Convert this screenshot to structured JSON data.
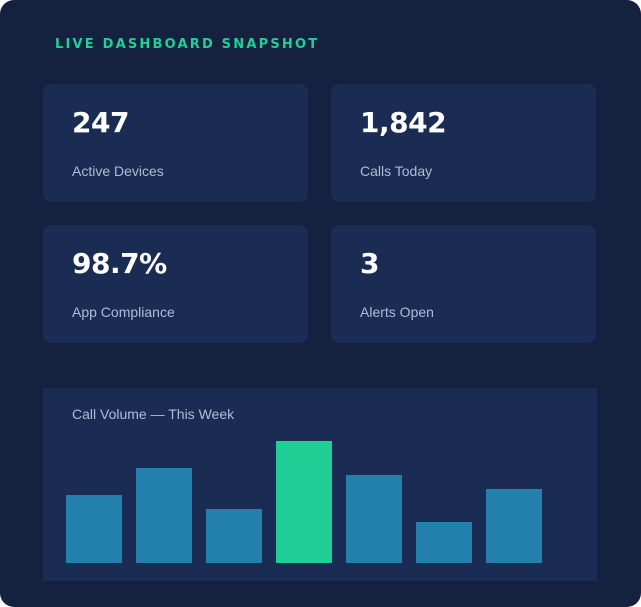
{
  "header": {
    "title": "LIVE DASHBOARD SNAPSHOT"
  },
  "stats": [
    {
      "value": "247",
      "label": "Active Devices"
    },
    {
      "value": "1,842",
      "label": "Calls Today"
    },
    {
      "value": "98.7%",
      "label": "App Compliance"
    },
    {
      "value": "3",
      "label": "Alerts Open"
    }
  ],
  "colors": {
    "accent": "#22cf96",
    "bar": "#2380ac",
    "highlight_bar": "#1fcf96",
    "card": "#1a2c54",
    "background": "#142240"
  },
  "chart_data": {
    "type": "bar",
    "title": "Call Volume — This Week",
    "values": [
      68,
      95,
      54,
      122,
      88,
      41,
      74
    ],
    "highlight_index": 3,
    "ylim": [
      0,
      122
    ]
  }
}
